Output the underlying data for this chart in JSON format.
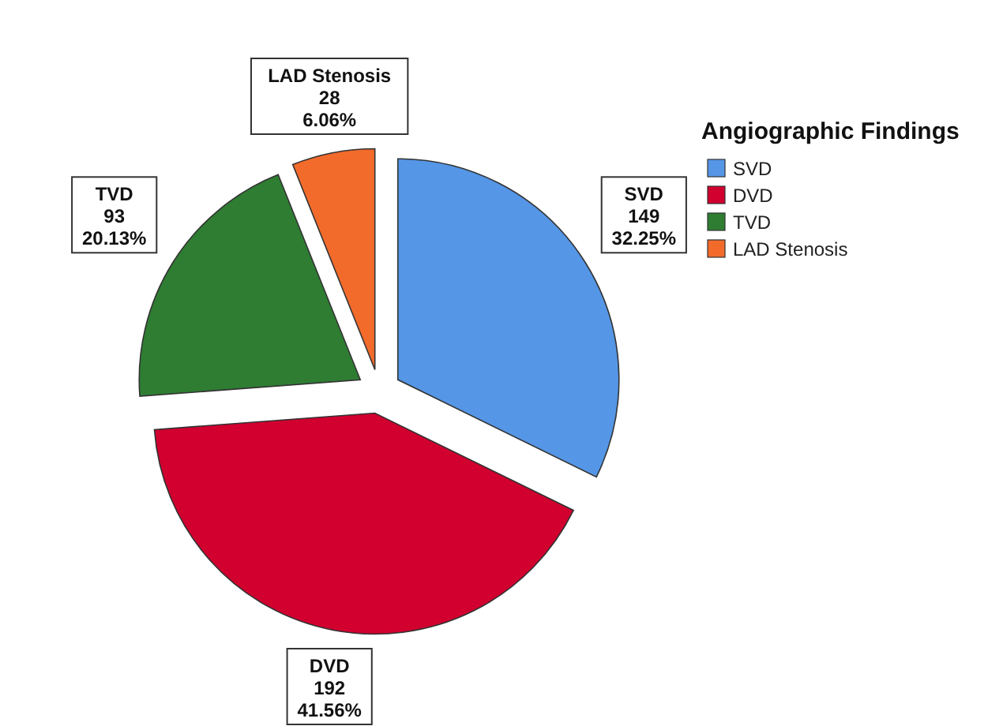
{
  "chart_data": {
    "type": "pie",
    "legend_title": "Angiographic Findings",
    "legend": "right",
    "categories": [
      "SVD",
      "DVD",
      "TVD",
      "LAD Stenosis"
    ],
    "values": [
      32.25,
      41.56,
      20.13,
      6.06
    ],
    "colors": [
      "#5596e6",
      "#d1002f",
      "#2e7d32",
      "#f26b2b"
    ],
    "value_labels": [
      "149\n32.25%",
      "192\n41.56%",
      "93\n20.13%",
      "28\n6.06%"
    ]
  }
}
